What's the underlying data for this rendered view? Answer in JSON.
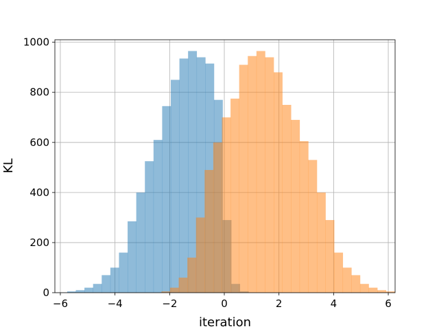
{
  "chart_data": {
    "type": "bar",
    "title": "",
    "xlabel": "iteration",
    "ylabel": "KL",
    "xlim": [
      -6.2,
      6.25
    ],
    "ylim": [
      0,
      1010
    ],
    "xticks": [
      -6,
      -4,
      -2,
      0,
      2,
      4,
      6
    ],
    "yticks": [
      0,
      200,
      400,
      600,
      800,
      1000
    ],
    "grid": true,
    "legend": "none",
    "bin_width": 0.316,
    "series": [
      {
        "color": "#1f77b4",
        "opacity": 0.5,
        "bin_start": -5.75,
        "values": [
          5,
          10,
          20,
          35,
          70,
          100,
          160,
          285,
          400,
          525,
          610,
          745,
          850,
          935,
          965,
          940,
          915,
          770,
          290,
          35,
          5
        ]
      },
      {
        "color": "#ff7f0e",
        "opacity": 0.5,
        "bin_start": -2.3,
        "values": [
          5,
          20,
          60,
          140,
          300,
          490,
          600,
          700,
          775,
          910,
          945,
          965,
          940,
          880,
          750,
          690,
          605,
          530,
          400,
          290,
          160,
          100,
          70,
          35,
          20,
          10,
          5
        ]
      }
    ]
  }
}
